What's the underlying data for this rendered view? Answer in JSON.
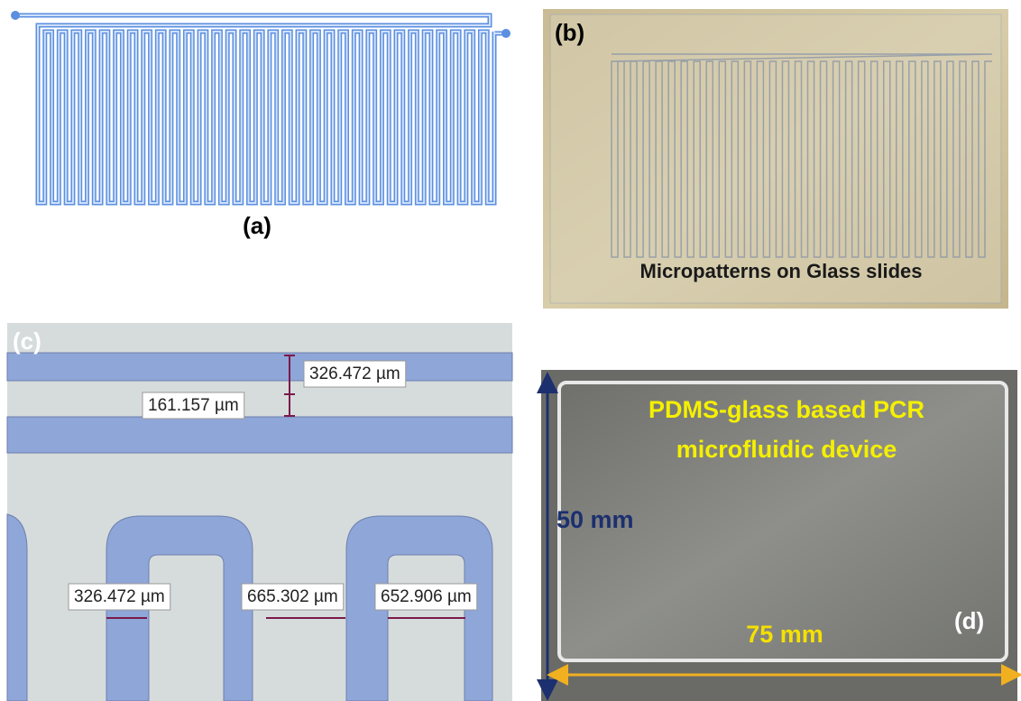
{
  "panels": {
    "a": {
      "label": "(a)"
    },
    "b": {
      "label": "(b)",
      "caption": "Micropatterns on Glass slides"
    },
    "c": {
      "label": "(c)",
      "measurements": [
        "326.472 µm",
        "161.157 µm",
        "326.472 µm",
        "665.302 µm",
        "652.906 µm"
      ]
    },
    "d": {
      "label": "(d)",
      "title_lines": [
        "PDMS-glass based PCR",
        "microfluidic device"
      ],
      "height_label": "50 mm",
      "width_label": "75 mm"
    }
  }
}
